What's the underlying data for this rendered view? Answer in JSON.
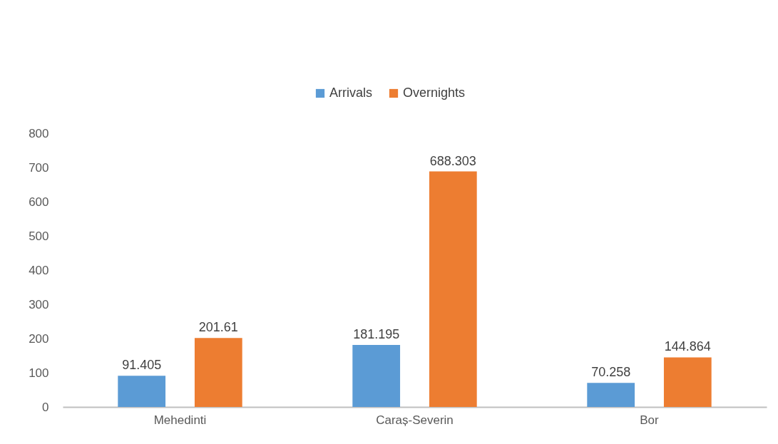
{
  "chart_data": {
    "type": "bar",
    "categories": [
      "Mehedinti",
      "Caraș-Severin",
      "Bor"
    ],
    "series": [
      {
        "name": "Arrivals",
        "color": "#5b9bd5",
        "values": [
          91.405,
          181.195,
          70.258
        ]
      },
      {
        "name": "Overnights",
        "color": "#ed7d31",
        "values": [
          201.61,
          688.303,
          144.864
        ]
      }
    ],
    "ylim": [
      0,
      800
    ],
    "yticks": [
      0,
      100,
      200,
      300,
      400,
      500,
      600,
      700,
      800
    ],
    "grid": false,
    "legend": "top",
    "data_labels": true
  }
}
